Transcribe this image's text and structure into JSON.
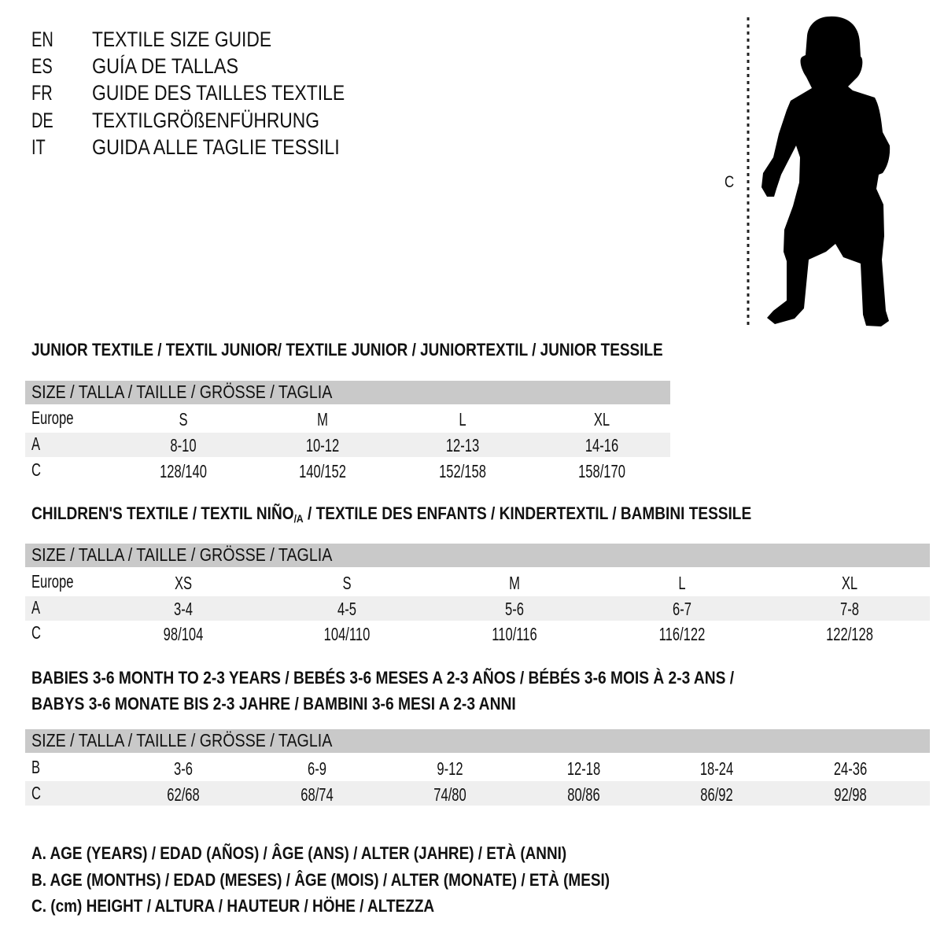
{
  "header": {
    "lines": [
      {
        "code": "EN",
        "text": "TEXTILE SIZE GUIDE"
      },
      {
        "code": "ES",
        "text": "GUÍA DE TALLAS"
      },
      {
        "code": "FR",
        "text": "GUIDE DES TAILLES TEXTILE"
      },
      {
        "code": "DE",
        "text": "TEXTILGRÖßENFÜHRUNG"
      },
      {
        "code": "IT",
        "text": "GUIDA ALLE TAGLIE TESSILI"
      }
    ]
  },
  "figure": {
    "measure_label": "C",
    "icon": "baby-silhouette-icon"
  },
  "junior": {
    "title": "JUNIOR TEXTILE / TEXTIL JUNIOR/ TEXTILE JUNIOR / JUNIORTEXTIL / JUNIOR TESSILE",
    "size_header": "SIZE / TALLA / TAILLE / GRÖSSE / TAGLIA",
    "rows": [
      {
        "label": "Europe",
        "values": [
          "S",
          "M",
          "L",
          "XL"
        ]
      },
      {
        "label": "A",
        "values": [
          "8-10",
          "10-12",
          "12-13",
          "14-16"
        ]
      },
      {
        "label": "C",
        "values": [
          "128/140",
          "140/152",
          "152/158",
          "158/170"
        ]
      }
    ]
  },
  "children": {
    "title_main": "CHILDREN'S TEXTILE / TEXTIL NIÑO",
    "title_sub": "/A",
    "title_rest": " / TEXTILE DES ENFANTS / KINDERTEXTIL / BAMBINI TESSILE",
    "size_header": "SIZE / TALLA / TAILLE / GRÖSSE / TAGLIA",
    "rows": [
      {
        "label": "Europe",
        "values": [
          "XS",
          "S",
          "M",
          "L",
          "XL"
        ]
      },
      {
        "label": "A",
        "values": [
          "3-4",
          "4-5",
          "5-6",
          "6-7",
          "7-8"
        ]
      },
      {
        "label": "C",
        "values": [
          "98/104",
          "104/110",
          "110/116",
          "116/122",
          "122/128"
        ]
      }
    ]
  },
  "babies": {
    "title_line1": "BABIES 3-6 MONTH TO 2-3 YEARS / BEBÉS 3-6 MESES A 2-3 AÑOS / BÉBÉS 3-6 MOIS À 2-3 ANS /",
    "title_line2": "BABYS 3-6 MONATE BIS 2-3 JAHRE / BAMBINI 3-6 MESI A 2-3 ANNI",
    "size_header": "SIZE / TALLA / TAILLE / GRÖSSE / TAGLIA",
    "rows": [
      {
        "label": "B",
        "values": [
          "3-6",
          "6-9",
          "9-12",
          "12-18",
          "18-24",
          "24-36"
        ]
      },
      {
        "label": "C",
        "values": [
          "62/68",
          "68/74",
          "74/80",
          "80/86",
          "86/92",
          "92/98"
        ]
      }
    ]
  },
  "legend": [
    "A. AGE (YEARS) / EDAD (AÑOS) / ÂGE (ANS) / ALTER (JAHRE) / ETÀ (ANNI)",
    "B. AGE (MONTHS) / EDAD (MESES) / ÂGE (MOIS) / ALTER (MONATE) / ETÀ (MESI)",
    "C. (cm) HEIGHT / ALTURA / HAUTEUR / HÖHE / ALTEZZA"
  ]
}
